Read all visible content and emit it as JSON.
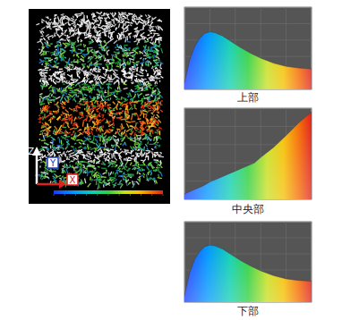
{
  "volume_image": {
    "axis_labels": [
      "Z",
      "Y",
      "X"
    ]
  },
  "chart_data": [
    {
      "type": "area",
      "title": "上部",
      "x": [
        0,
        4,
        8,
        12,
        16,
        20,
        24,
        30,
        36,
        44,
        52,
        60,
        70,
        80,
        90,
        100
      ],
      "values": [
        8,
        35,
        52,
        62,
        68,
        70,
        69,
        65,
        59,
        51,
        44,
        38,
        32,
        28,
        26,
        25
      ],
      "xlim": [
        0,
        100
      ],
      "ylim": [
        0,
        100
      ],
      "xticks": [
        0,
        20,
        40,
        60,
        80,
        100
      ],
      "yticks": [
        0,
        20,
        40,
        60,
        80,
        100
      ],
      "grid": true,
      "tick_labels": false
    },
    {
      "type": "area",
      "title": "中央部",
      "x": [
        0,
        5,
        10,
        15,
        20,
        25,
        30,
        35,
        40,
        45,
        50,
        55,
        60,
        70,
        80,
        90,
        100
      ],
      "values": [
        6,
        9,
        12,
        15,
        19,
        22,
        25,
        28,
        31,
        34,
        37,
        40,
        46,
        57,
        70,
        84,
        96
      ],
      "xlim": [
        0,
        100
      ],
      "ylim": [
        0,
        100
      ],
      "xticks": [
        0,
        20,
        40,
        60,
        80,
        100
      ],
      "yticks": [
        0,
        20,
        40,
        60,
        80,
        100
      ],
      "grid": true,
      "tick_labels": false
    },
    {
      "type": "area",
      "title": "下部",
      "x": [
        0,
        4,
        8,
        12,
        16,
        20,
        24,
        30,
        36,
        44,
        52,
        60,
        70,
        80,
        90,
        100
      ],
      "values": [
        8,
        36,
        53,
        63,
        69,
        71,
        70,
        66,
        60,
        52,
        45,
        39,
        33,
        29,
        27,
        26
      ],
      "xlim": [
        0,
        100
      ],
      "ylim": [
        0,
        100
      ],
      "xticks": [
        0,
        20,
        40,
        60,
        80,
        100
      ],
      "yticks": [
        0,
        20,
        40,
        60,
        80,
        100
      ],
      "grid": true,
      "tick_labels": false
    }
  ]
}
